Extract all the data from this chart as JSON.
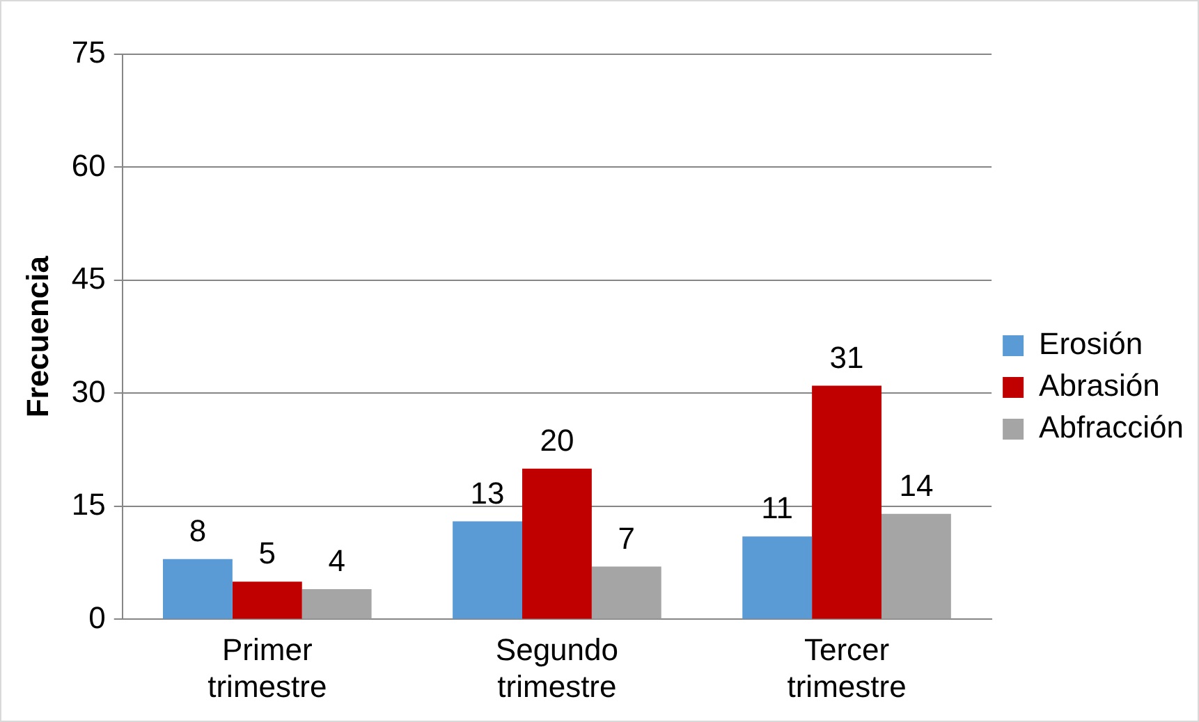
{
  "chart_data": {
    "type": "bar",
    "ylabel": "Frecuencia",
    "categories": [
      "Primer trimestre",
      "Segundo trimestre",
      "Tercer trimestre"
    ],
    "series": [
      {
        "name": "Erosión",
        "color": "#5b9bd5",
        "values": [
          8,
          13,
          11
        ]
      },
      {
        "name": "Abrasión",
        "color": "#c00000",
        "values": [
          5,
          20,
          31
        ]
      },
      {
        "name": "Abfracción",
        "color": "#a5a5a5",
        "values": [
          4,
          7,
          14
        ]
      }
    ],
    "ylim": [
      0,
      75
    ],
    "yticks": [
      0,
      15,
      30,
      45,
      60,
      75
    ],
    "grid": "y",
    "legend": "right",
    "data_labels": true
  }
}
